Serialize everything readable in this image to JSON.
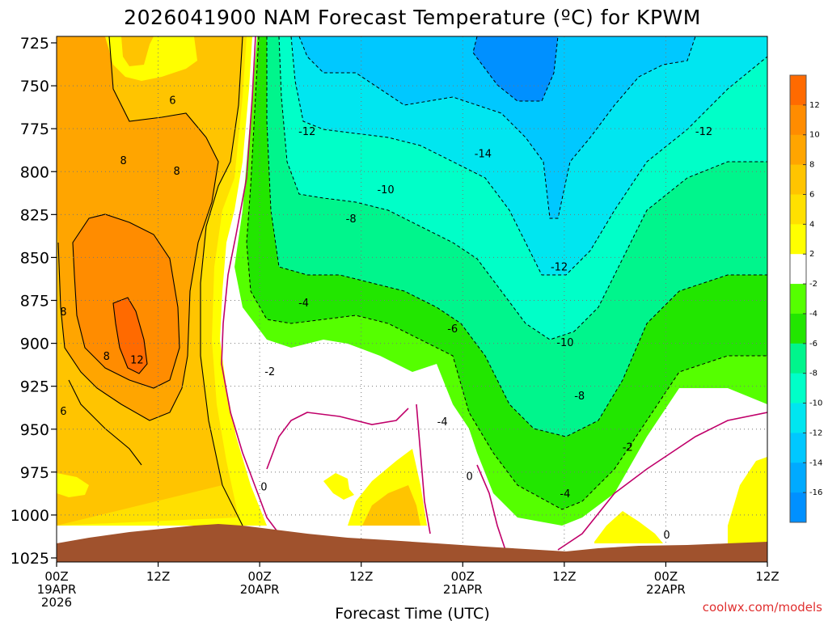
{
  "chart_data": {
    "type": "heatmap",
    "title": "2026041900 NAM Forecast Temperature (ºC) for KPWM",
    "xlabel": "Forecast Time (UTC)",
    "ylabel": "",
    "credit": "coolwx.com/models",
    "x_range_hours": [
      0,
      84
    ],
    "y_range_hpa": [
      725,
      1025
    ],
    "y_ticks": [
      "725",
      "750",
      "775",
      "800",
      "825",
      "850",
      "875",
      "900",
      "925",
      "950",
      "975",
      "1000",
      "1025"
    ],
    "x_ticks": [
      {
        "hour": 0,
        "lines": [
          "00Z",
          "19APR",
          "2026"
        ]
      },
      {
        "hour": 12,
        "lines": [
          "12Z"
        ]
      },
      {
        "hour": 24,
        "lines": [
          "00Z",
          "20APR"
        ]
      },
      {
        "hour": 36,
        "lines": [
          "12Z"
        ]
      },
      {
        "hour": 48,
        "lines": [
          "00Z",
          "21APR"
        ]
      },
      {
        "hour": 60,
        "lines": [
          "12Z"
        ]
      },
      {
        "hour": 72,
        "lines": [
          "00Z",
          "22APR"
        ]
      },
      {
        "hour": 84,
        "lines": [
          "12Z"
        ]
      }
    ],
    "legend_labels": [
      "12",
      "10",
      "8",
      "6",
      "4",
      "2",
      "-2",
      "-4",
      "-6",
      "-8",
      "-10",
      "-12",
      "-14",
      "-16"
    ],
    "legend_colors": [
      "#ff6a00",
      "#ff8c00",
      "#ffa500",
      "#ffc400",
      "#ffe000",
      "#ffff00",
      "#ffffff",
      "#55ff00",
      "#22e600",
      "#00f58c",
      "#00ffc8",
      "#00e6f0",
      "#00c8ff",
      "#00aaff",
      "#0090ff"
    ],
    "contour_labels": [
      {
        "text": "6",
        "hour": 13.7,
        "hpa": 759
      },
      {
        "text": "8",
        "hour": 7.9,
        "hpa": 794
      },
      {
        "text": "8",
        "hour": 14.2,
        "hpa": 800
      },
      {
        "text": "8",
        "hour": 0.8,
        "hpa": 882
      },
      {
        "text": "8",
        "hour": 5.9,
        "hpa": 908
      },
      {
        "text": "12",
        "hour": 9.5,
        "hpa": 910
      },
      {
        "text": "6",
        "hour": 0.8,
        "hpa": 940
      },
      {
        "text": "-12",
        "hour": 29.6,
        "hpa": 777
      },
      {
        "text": "-14",
        "hour": 50.4,
        "hpa": 790
      },
      {
        "text": "-10",
        "hour": 38.9,
        "hpa": 811
      },
      {
        "text": "-8",
        "hour": 34.8,
        "hpa": 828
      },
      {
        "text": "-12",
        "hour": 59.4,
        "hpa": 856
      },
      {
        "text": "-12",
        "hour": 76.5,
        "hpa": 777
      },
      {
        "text": "-4",
        "hour": 29.2,
        "hpa": 877
      },
      {
        "text": "-6",
        "hour": 46.8,
        "hpa": 892
      },
      {
        "text": "-10",
        "hour": 60.1,
        "hpa": 900
      },
      {
        "text": "-8",
        "hour": 61.8,
        "hpa": 931
      },
      {
        "text": "-2",
        "hour": 25.2,
        "hpa": 917
      },
      {
        "text": "-4",
        "hour": 45.6,
        "hpa": 946
      },
      {
        "text": "-2",
        "hour": 67.5,
        "hpa": 961
      },
      {
        "text": "-4",
        "hour": 60.1,
        "hpa": 988
      },
      {
        "text": "0",
        "hour": 24.5,
        "hpa": 984
      },
      {
        "text": "0",
        "hour": 48.8,
        "hpa": 978
      },
      {
        "text": "0",
        "hour": 72.1,
        "hpa": 1012
      }
    ]
  }
}
